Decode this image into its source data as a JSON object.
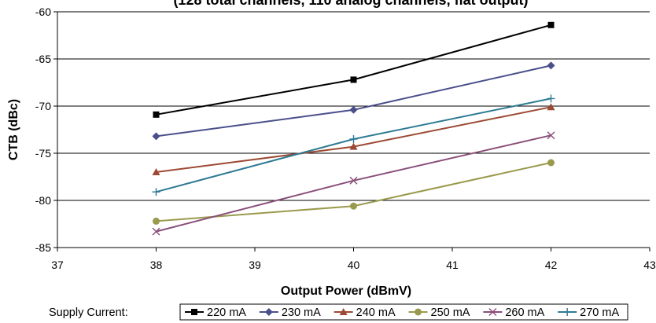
{
  "chart_data": {
    "type": "line",
    "title": "(128 total channels, 110 analog channels, flat output)",
    "xlabel": "Output Power (dBmV)",
    "ylabel": "CTB (dBc)",
    "xlim": [
      37,
      43
    ],
    "ylim": [
      -85,
      -60
    ],
    "x_ticks": [
      37,
      38,
      39,
      40,
      41,
      42,
      43
    ],
    "y_ticks": [
      -60,
      -65,
      -70,
      -75,
      -80,
      -85
    ],
    "grid": "horizontal",
    "legend_title": "Supply Current:",
    "legend_position": "bottom",
    "x": [
      38,
      40,
      42
    ],
    "series": [
      {
        "name": "220 mA",
        "values": [
          -70.9,
          -67.2,
          -61.4
        ],
        "color": "#000000",
        "marker": "square"
      },
      {
        "name": "230 mA",
        "values": [
          -73.2,
          -70.4,
          -65.7
        ],
        "color": "#4a4f8a",
        "marker": "diamond"
      },
      {
        "name": "240 mA",
        "values": [
          -77.0,
          -74.3,
          -70.1
        ],
        "color": "#9c4a33",
        "marker": "triangle"
      },
      {
        "name": "250 mA",
        "values": [
          -82.2,
          -80.6,
          -76.0
        ],
        "color": "#9a9a4e",
        "marker": "circle"
      },
      {
        "name": "260 mA",
        "values": [
          -83.3,
          -77.9,
          -73.1
        ],
        "color": "#8a4f7a",
        "marker": "x"
      },
      {
        "name": "270 mA",
        "values": [
          -79.1,
          -73.5,
          -69.2
        ],
        "color": "#2e7a93",
        "marker": "plus"
      }
    ]
  }
}
